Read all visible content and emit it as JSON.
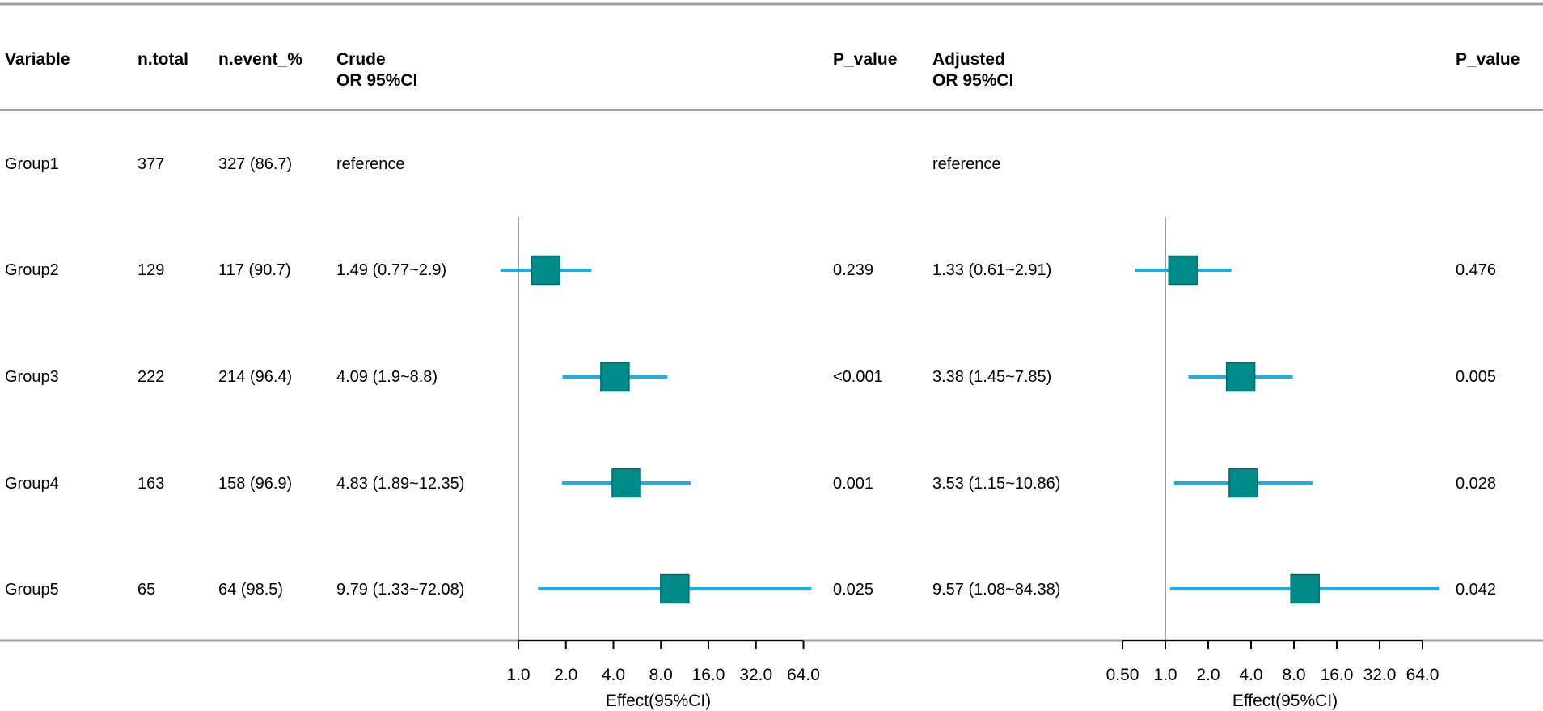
{
  "chart_data": {
    "type": "forest",
    "scale": "log2",
    "columns": {
      "variable": "Variable",
      "n_total": "n.total",
      "n_event": "n.event_%",
      "crude_line1": "Crude",
      "crude_line2": "OR 95%CI",
      "p_crude": "P_value",
      "adjusted_line1": "Adjusted",
      "adjusted_line2": "OR 95%CI",
      "p_adjusted": "P_value"
    },
    "rows": [
      {
        "variable": "Group1",
        "n_total": "377",
        "n_event": "327 (86.7)",
        "crude_text": "reference",
        "crude_p": "",
        "adj_text": "reference",
        "adj_p": "",
        "crude": null,
        "adjusted": null
      },
      {
        "variable": "Group2",
        "n_total": "129",
        "n_event": "117 (90.7)",
        "crude_text": "1.49 (0.77~2.9)",
        "crude_p": "0.239",
        "adj_text": "1.33 (0.61~2.91)",
        "adj_p": "0.476",
        "crude": {
          "or": 1.49,
          "lo": 0.77,
          "hi": 2.9
        },
        "adjusted": {
          "or": 1.33,
          "lo": 0.61,
          "hi": 2.91
        }
      },
      {
        "variable": "Group3",
        "n_total": "222",
        "n_event": "214 (96.4)",
        "crude_text": "4.09 (1.9~8.8)",
        "crude_p": "<0.001",
        "adj_text": "3.38 (1.45~7.85)",
        "adj_p": "0.005",
        "crude": {
          "or": 4.09,
          "lo": 1.9,
          "hi": 8.8
        },
        "adjusted": {
          "or": 3.38,
          "lo": 1.45,
          "hi": 7.85
        }
      },
      {
        "variable": "Group4",
        "n_total": "163",
        "n_event": "158 (96.9)",
        "crude_text": "4.83 (1.89~12.35)",
        "crude_p": "0.001",
        "adj_text": "3.53 (1.15~10.86)",
        "adj_p": "0.028",
        "crude": {
          "or": 4.83,
          "lo": 1.89,
          "hi": 12.35
        },
        "adjusted": {
          "or": 3.53,
          "lo": 1.15,
          "hi": 10.86
        }
      },
      {
        "variable": "Group5",
        "n_total": "65",
        "n_event": "64 (98.5)",
        "crude_text": "9.79 (1.33~72.08)",
        "crude_p": "0.025",
        "adj_text": "9.57 (1.08~84.38)",
        "adj_p": "0.042",
        "crude": {
          "or": 9.79,
          "lo": 1.33,
          "hi": 72.08
        },
        "adjusted": {
          "or": 9.57,
          "lo": 1.08,
          "hi": 84.38
        }
      }
    ],
    "crude_axis": {
      "ticks": [
        1,
        2,
        4,
        8,
        16,
        32,
        64
      ],
      "tick_labels": [
        "1.0",
        "2.0",
        "4.0",
        "8.0",
        "16.0",
        "32.0",
        "64.0"
      ],
      "xlabel": "Effect(95%CI)",
      "reference": 1
    },
    "adjusted_axis": {
      "ticks": [
        0.5,
        1,
        2,
        4,
        8,
        16,
        32,
        64
      ],
      "tick_labels": [
        "0.50",
        "1.0",
        "2.0",
        "4.0",
        "8.0",
        "16.0",
        "32.0",
        "64.0"
      ],
      "xlabel": "Effect(95%CI)",
      "reference": 1
    },
    "colors": {
      "box_fill": "#008B8B",
      "box_stroke": "#006B6B",
      "ci_line": "#1AAEE8",
      "ref_line": "#9E9E9E",
      "rule": "#A0A0A0",
      "axis": "#000000"
    }
  }
}
